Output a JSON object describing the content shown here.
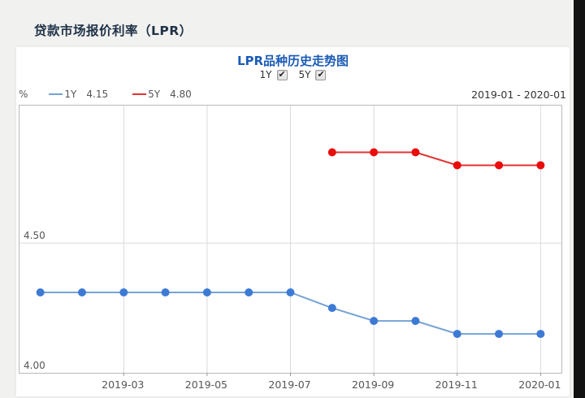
{
  "page": {
    "title": "贷款市场报价利率（LPR）"
  },
  "chart": {
    "title": "LPR品种历史走势图",
    "unit": "%",
    "period": "2019-01 - 2020-01",
    "checkboxes": [
      {
        "label": "1Y",
        "checked": true
      },
      {
        "label": "5Y",
        "checked": true
      }
    ],
    "legend": [
      {
        "name": "1Y",
        "value": "4.15"
      },
      {
        "name": "5Y",
        "value": "4.80"
      }
    ]
  },
  "chart_data": {
    "type": "line",
    "title": "LPR品种历史走势图",
    "x": [
      "2019-01",
      "2019-02",
      "2019-03",
      "2019-04",
      "2019-05",
      "2019-06",
      "2019-07",
      "2019-08",
      "2019-09",
      "2019-10",
      "2019-11",
      "2019-12",
      "2020-01"
    ],
    "series": [
      {
        "name": "1Y",
        "values": [
          4.31,
          4.31,
          4.31,
          4.31,
          4.31,
          4.31,
          4.31,
          4.25,
          4.2,
          4.2,
          4.15,
          4.15,
          4.15
        ],
        "line_color": "#76a2d6",
        "marker_color": "#3c7ad4"
      },
      {
        "name": "5Y",
        "values": [
          null,
          null,
          null,
          null,
          null,
          null,
          null,
          4.85,
          4.85,
          4.85,
          4.8,
          4.8,
          4.8
        ],
        "line_color": "#e23333",
        "marker_color": "#ea0b0b"
      }
    ],
    "x_tick_labels": [
      "2019-03",
      "2019-05",
      "2019-07",
      "2019-09",
      "2019-11",
      "2020-01"
    ],
    "x_tick_indices": [
      2,
      4,
      6,
      8,
      10,
      12
    ],
    "y_ticks": [
      4.0,
      4.5
    ],
    "ylim": [
      4.0,
      5.03
    ],
    "ylabel": "%",
    "grid": true,
    "legend_position": "top-left",
    "grid_color": "#dadada",
    "axis_text_color": "#555555"
  }
}
